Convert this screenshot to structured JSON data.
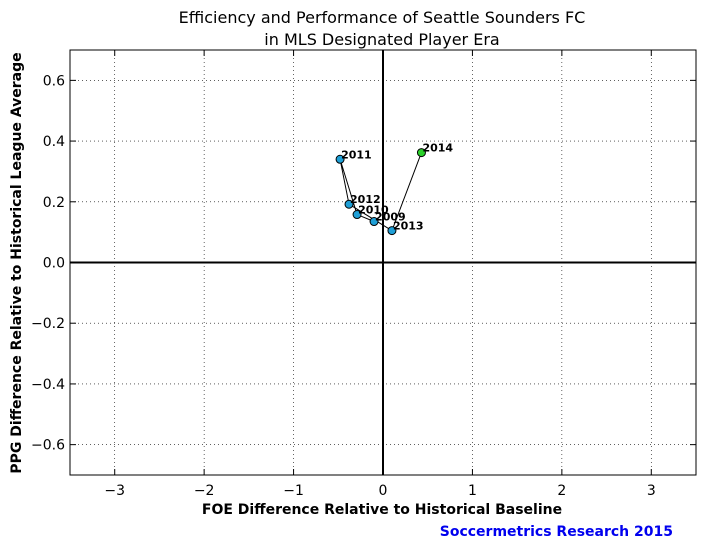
{
  "chart_data": {
    "type": "scatter",
    "title_line1": "Efficiency and Performance of Seattle Sounders FC",
    "title_line2": "in MLS Designated Player Era",
    "xlabel": "FOE Difference Relative to Historical Baseline",
    "ylabel": "PPG Difference Relative to Historical League Average",
    "credit": "Soccermetrics Research 2015",
    "credit_color": "#0000ee",
    "xlim": [
      -3.5,
      3.5
    ],
    "ylim": [
      -0.7,
      0.7
    ],
    "xticks": [
      -3,
      -2,
      -1,
      0,
      1,
      2,
      3
    ],
    "xtick_labels": [
      "−3",
      "−2",
      "−1",
      "0",
      "1",
      "2",
      "3"
    ],
    "yticks": [
      -0.6,
      -0.4,
      -0.2,
      0.0,
      0.2,
      0.4,
      0.6
    ],
    "ytick_labels": [
      "−0.6",
      "−0.4",
      "−0.2",
      "0.0",
      "0.2",
      "0.4",
      "0.6"
    ],
    "grid": true,
    "point_color": "#1f9fd6",
    "highlight_color": "#2bd12b",
    "line_color": "#000000",
    "points": [
      {
        "label": "2009",
        "x": -0.1,
        "y": 0.135
      },
      {
        "label": "2010",
        "x": -0.29,
        "y": 0.158
      },
      {
        "label": "2011",
        "x": -0.48,
        "y": 0.34
      },
      {
        "label": "2012",
        "x": -0.38,
        "y": 0.192
      },
      {
        "label": "2013",
        "x": 0.1,
        "y": 0.105
      },
      {
        "label": "2014",
        "x": 0.43,
        "y": 0.362,
        "highlight": true
      }
    ]
  }
}
